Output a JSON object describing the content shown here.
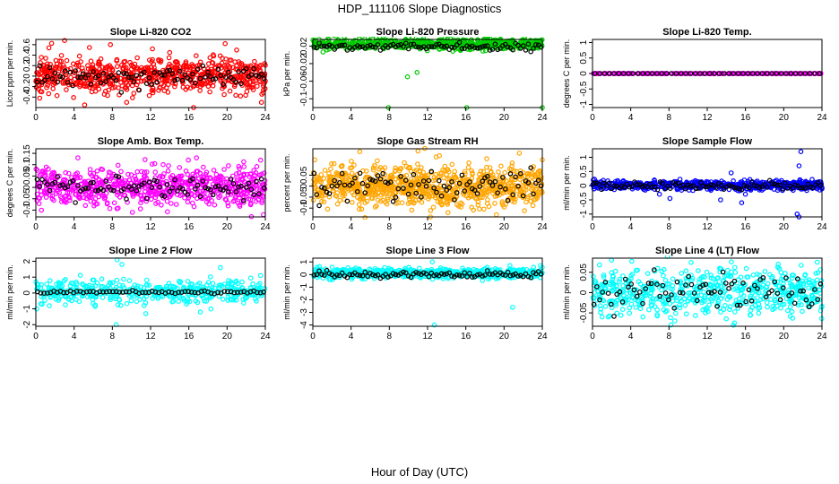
{
  "title": "HDP_111106  Slope Diagnostics",
  "xlabel": "Hour of Day (UTC)",
  "colors": {
    "black": "#000000",
    "red": "#ff0000",
    "green": "#00cc00",
    "magenta": "#ff00ff",
    "orange": "#ffa500",
    "blue": "#0000ff",
    "cyan": "#00ffff"
  },
  "chart_data": [
    {
      "type": "scatter",
      "title": "Slope Li-820 CO2",
      "ylabel": "Licor ppm per min.",
      "color": "#ff0000",
      "xlim": [
        0,
        24
      ],
      "ylim": [
        -0.6,
        0.7
      ],
      "xticks": [
        0,
        4,
        8,
        12,
        16,
        20,
        24
      ],
      "yticks": [
        -0.4,
        -0.2,
        0,
        0.2,
        0.4,
        0.6
      ],
      "points": [
        [
          3.0,
          0.68
        ],
        [
          5.1,
          -0.55
        ],
        [
          0.4,
          -0.42
        ],
        [
          16.5,
          -0.6
        ],
        [
          23.6,
          -0.5
        ],
        [
          7.8,
          0.6
        ],
        [
          12.2,
          0.52
        ],
        [
          19.8,
          0.62
        ],
        [
          9.5,
          -0.5
        ],
        [
          14.0,
          0.45
        ],
        [
          2.1,
          0.3
        ],
        [
          21.4,
          -0.38
        ],
        [
          10.6,
          0.35
        ],
        [
          18.2,
          -0.3
        ]
      ],
      "series": [
        {
          "name": "points",
          "n": 700,
          "mean": 0.02,
          "spread": 0.17,
          "seed": 11
        },
        {
          "name": "hourly",
          "color": "#000000",
          "n": 90,
          "mean": 0.0,
          "spread": 0.1,
          "seed": 12
        }
      ]
    },
    {
      "type": "scatter",
      "title": "Slope Li-820 Pressure",
      "ylabel": "kPa per min.",
      "color": "#00cc00",
      "xlim": [
        0,
        24
      ],
      "ylim": [
        -0.12,
        0.035
      ],
      "xticks": [
        0,
        4,
        8,
        12,
        16,
        20,
        24
      ],
      "yticks": [
        -0.1,
        -0.06,
        -0.02,
        0.02
      ],
      "points": [
        [
          7.9,
          -0.12
        ],
        [
          16.1,
          -0.12
        ],
        [
          24.0,
          -0.12
        ],
        [
          10.9,
          -0.04
        ],
        [
          9.9,
          -0.05
        ]
      ],
      "series": [
        {
          "name": "points",
          "n": 650,
          "mean": 0.025,
          "spread": 0.006,
          "seed": 21
        },
        {
          "name": "hourly",
          "color": "#000000",
          "n": 90,
          "mean": 0.018,
          "spread": 0.004,
          "seed": 22
        }
      ]
    },
    {
      "type": "scatter",
      "title": "Slope Li-820 Temp.",
      "ylabel": "degrees C per min.",
      "color": "#ff00ff",
      "xlim": [
        0,
        24
      ],
      "ylim": [
        -1.1,
        1.1
      ],
      "xticks": [
        0,
        4,
        8,
        12,
        16,
        20,
        24
      ],
      "yticks": [
        -1.0,
        -0.5,
        0,
        0.5,
        1.0
      ],
      "points": [],
      "series": [
        {
          "name": "points",
          "n": 300,
          "mean": 0.0,
          "spread": 0.0,
          "seed": 31
        },
        {
          "name": "hourly",
          "color": "#000000",
          "n": 48,
          "mean": 0.0,
          "spread": 0.0,
          "seed": 32
        }
      ]
    },
    {
      "type": "scatter",
      "title": "Slope Amb. Box Temp.",
      "ylabel": "degrees C per min.",
      "color": "#ff00ff",
      "xlim": [
        0,
        24
      ],
      "ylim": [
        -0.13,
        0.17
      ],
      "xticks": [
        0,
        4,
        8,
        12,
        16,
        20,
        24
      ],
      "yticks": [
        -0.1,
        -0.05,
        0,
        0.05,
        0.1,
        0.15
      ],
      "points": [
        [
          23.5,
          0.12
        ],
        [
          4.4,
          0.13
        ],
        [
          16.8,
          0.13
        ],
        [
          23.8,
          -0.12
        ],
        [
          10.1,
          -0.11
        ]
      ],
      "series": [
        {
          "name": "points",
          "n": 700,
          "mean": 0.0,
          "spread": 0.04,
          "seed": 41
        },
        {
          "name": "hourly",
          "color": "#000000",
          "n": 90,
          "mean": 0.0,
          "spread": 0.025,
          "seed": 42
        }
      ]
    },
    {
      "type": "scatter",
      "title": "Slope Gas Stream RH",
      "ylabel": "percent per min.",
      "color": "#ffa500",
      "xlim": [
        0,
        24
      ],
      "ylim": [
        -0.14,
        0.17
      ],
      "xticks": [
        0,
        4,
        8,
        12,
        16,
        20,
        24
      ],
      "yticks": [
        -0.1,
        -0.05,
        0,
        0.05
      ],
      "points": [
        [
          11.0,
          0.16
        ],
        [
          21.6,
          0.15
        ],
        [
          12.3,
          -0.14
        ],
        [
          19.2,
          -0.13
        ],
        [
          24.0,
          0.12
        ],
        [
          0.2,
          0.12
        ]
      ],
      "series": [
        {
          "name": "points",
          "n": 850,
          "mean": 0.0,
          "spread": 0.045,
          "seed": 51
        },
        {
          "name": "hourly",
          "color": "#000000",
          "n": 90,
          "mean": 0.0,
          "spread": 0.035,
          "seed": 52
        }
      ]
    },
    {
      "type": "scatter",
      "title": "Slope Sample Flow",
      "ylabel": "ml/min per min.",
      "color": "#0000ff",
      "xlim": [
        0,
        24
      ],
      "ylim": [
        -1.1,
        1.3
      ],
      "xticks": [
        0,
        4,
        8,
        12,
        16,
        20,
        24
      ],
      "yticks": [
        -1.0,
        -0.5,
        0,
        0.5,
        1.0
      ],
      "points": [
        [
          21.8,
          1.2
        ],
        [
          21.6,
          0.7
        ],
        [
          21.4,
          -1.0
        ],
        [
          21.6,
          -1.1
        ],
        [
          13.4,
          -0.5
        ],
        [
          8.1,
          -0.45
        ],
        [
          14.5,
          0.45
        ],
        [
          15.6,
          -0.6
        ],
        [
          7.0,
          -0.3
        ]
      ],
      "series": [
        {
          "name": "points",
          "n": 650,
          "mean": 0.02,
          "spread": 0.08,
          "seed": 61
        },
        {
          "name": "hourly",
          "color": "#000000",
          "n": 90,
          "mean": 0.0,
          "spread": 0.06,
          "seed": 62
        }
      ]
    },
    {
      "type": "scatter",
      "title": "Slope Line 2 Flow",
      "ylabel": "ml/min per min.",
      "color": "#00ffff",
      "xlim": [
        0,
        24
      ],
      "ylim": [
        -2.1,
        2.2
      ],
      "xticks": [
        0,
        4,
        8,
        12,
        16,
        20,
        24
      ],
      "yticks": [
        -2,
        -1,
        0,
        1,
        2
      ],
      "points": [
        [
          8.5,
          2.1
        ],
        [
          8.4,
          -2.0
        ],
        [
          9.0,
          1.8
        ],
        [
          11.5,
          -1.3
        ],
        [
          19.3,
          1.6
        ],
        [
          17.2,
          -1.2
        ],
        [
          0.1,
          -1.0
        ],
        [
          23.5,
          1.1
        ]
      ],
      "series": [
        {
          "name": "points",
          "n": 450,
          "mean": 0.1,
          "spread": 0.35,
          "seed": 71
        },
        {
          "name": "hourly",
          "color": "#000000",
          "n": 70,
          "mean": 0.05,
          "spread": 0.05,
          "seed": 72
        }
      ]
    },
    {
      "type": "scatter",
      "title": "Slope Line 3 Flow",
      "ylabel": "ml/min per min.",
      "color": "#00ffff",
      "xlim": [
        0,
        24
      ],
      "ylim": [
        -4.1,
        1.3
      ],
      "xticks": [
        0,
        4,
        8,
        12,
        16,
        20,
        24
      ],
      "yticks": [
        -4,
        -3,
        -2,
        -1,
        0,
        1
      ],
      "points": [
        [
          12.7,
          -4.0
        ],
        [
          20.9,
          -2.6
        ],
        [
          12.5,
          1.0
        ],
        [
          23.8,
          0.7
        ]
      ],
      "series": [
        {
          "name": "points",
          "n": 650,
          "mean": 0.1,
          "spread": 0.2,
          "seed": 81
        },
        {
          "name": "hourly",
          "color": "#000000",
          "n": 90,
          "mean": 0.0,
          "spread": 0.12,
          "seed": 82
        }
      ]
    },
    {
      "type": "scatter",
      "title": "Slope Line 4 (LT) Flow",
      "ylabel": "ml/min per min.",
      "color": "#00ffff",
      "xlim": [
        0,
        24
      ],
      "ylim": [
        -0.083,
        0.085
      ],
      "xticks": [
        0,
        4,
        8,
        12,
        16,
        20,
        24
      ],
      "yticks": [
        -0.05,
        0,
        0.05
      ],
      "points": [
        [
          2.0,
          0.08
        ],
        [
          8.2,
          -0.08
        ],
        [
          8.6,
          -0.07
        ],
        [
          23.5,
          0.075
        ],
        [
          1.0,
          -0.06
        ]
      ],
      "series": [
        {
          "name": "points",
          "n": 600,
          "mean": 0.0,
          "spread": 0.03,
          "seed": 91
        },
        {
          "name": "hourly",
          "color": "#000000",
          "n": 80,
          "mean": 0.0,
          "spread": 0.025,
          "seed": 92
        }
      ]
    }
  ]
}
